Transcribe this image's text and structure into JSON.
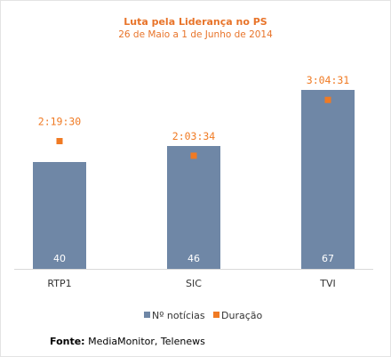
{
  "chart_data": {
    "type": "bar",
    "title": "Luta pela Liderança no PS",
    "subtitle": "26 de Maio a 1 de Junho de 2014",
    "categories": [
      "RTP1",
      "SIC",
      "TVI"
    ],
    "series": [
      {
        "name": "Nº notícias",
        "kind": "bar",
        "color": "#6f87a6",
        "values": [
          40,
          46,
          67
        ]
      },
      {
        "name": "Duração",
        "kind": "marker",
        "color": "#f07a23",
        "values": [
          8370,
          7414,
          11071
        ],
        "labels": [
          "2:19:30",
          "2:03:34",
          "3:04:31"
        ]
      }
    ],
    "bars_ylim": [
      0,
      76
    ],
    "duration_ylim": [
      0,
      13300
    ],
    "legend_position": "bottom",
    "grid": false
  },
  "source": {
    "label": "Fonte:",
    "text": " MediaMonitor, Telenews"
  }
}
